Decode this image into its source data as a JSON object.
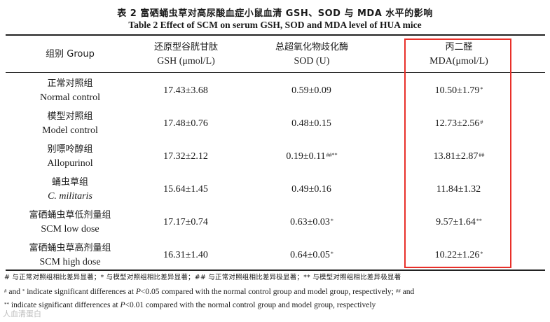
{
  "title": {
    "zh": "表 2    富硒蛹虫草对高尿酸血症小鼠血清 GSH、SOD 与 MDA 水平的影响",
    "en": "Table 2    Effect of SCM on serum GSH, SOD and MDA level of HUA mice"
  },
  "header": {
    "group": "组别 Group",
    "gsh_zh": "还原型谷胱甘肽",
    "gsh_en": "GSH (μmol/L)",
    "sod_zh": "总超氧化物歧化酶",
    "sod_en": "SOD (U)",
    "mda_zh": "丙二醛",
    "mda_en": "MDA(μmol/L)"
  },
  "rows": [
    {
      "zh": "正常对照组",
      "en": "Normal control",
      "gsh": "17.43±3.68",
      "gsh_sup": "",
      "sod": "0.59±0.09",
      "sod_sup": "",
      "mda": "10.50±1.79",
      "mda_sup": "*"
    },
    {
      "zh": "模型对照组",
      "en": "Model control",
      "gsh": "17.48±0.76",
      "gsh_sup": "",
      "sod": "0.48±0.15",
      "sod_sup": "",
      "mda": "12.73±2.56",
      "mda_sup": "#"
    },
    {
      "zh": "别嘌呤醇组",
      "en": "Allopurinol",
      "gsh": "17.32±2.12",
      "gsh_sup": "",
      "sod": "0.19±0.11",
      "sod_sup": "##**",
      "mda": "13.81±2.87",
      "mda_sup": "##"
    },
    {
      "zh": "蛹虫草组",
      "en": "C. militaris",
      "gsh": "15.64±1.45",
      "gsh_sup": "",
      "sod": "0.49±0.16",
      "sod_sup": "",
      "mda": "11.84±1.32",
      "mda_sup": ""
    },
    {
      "zh": "富硒蛹虫草低剂量组",
      "en": "SCM low dose",
      "gsh": "17.17±0.74",
      "gsh_sup": "",
      "sod": "0.63±0.03",
      "sod_sup": "*",
      "mda": "9.57±1.64",
      "mda_sup": "**"
    },
    {
      "zh": "富硒蛹虫草高剂量组",
      "en": "SCM high dose",
      "gsh": "16.31±1.40",
      "gsh_sup": "",
      "sod": "0.64±0.05",
      "sod_sup": "*",
      "mda": "10.22±1.26",
      "mda_sup": "*"
    }
  ],
  "notes": {
    "zh": "# 与正常对照组相比差异显著；* 与模型对照组相比差异显著；## 与正常对照组相比差异极显著；** 与模型对照组相比差异极显著",
    "en1_a": "and",
    "en1_b": "indicate significant differences at",
    "en1_p": "P",
    "en1_c": "<0.05 compared with the normal control group and model group, respectively;",
    "en1_d": "and",
    "en2_b": "indicate significant differences at",
    "en2_p": "P",
    "en2_c": "<0.01 compared with the normal control group and model group, respectively"
  },
  "watermark": "人血清蛋白",
  "colors": {
    "highlight_box": "#e8302a"
  }
}
